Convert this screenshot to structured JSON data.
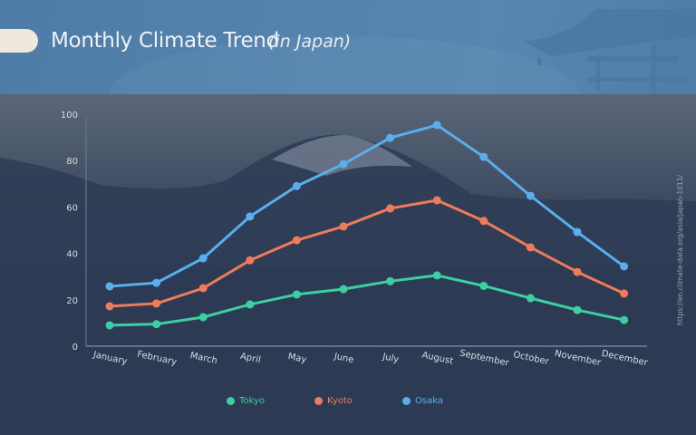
{
  "header": {
    "title": "Monthly Climate Trend",
    "subtitle": "(in Japan)"
  },
  "source": "https://en.climate-data.org/asia/japan-1011/",
  "legend": [
    {
      "label": "Tokyo",
      "color": "#3ccfa0"
    },
    {
      "label": "Kyoto",
      "color": "#ef7b5a"
    },
    {
      "label": "Osaka",
      "color": "#5aaeee"
    }
  ],
  "chart_data": {
    "type": "line",
    "title": "Monthly Climate Trend (in Japan)",
    "xlabel": "",
    "ylabel": "",
    "ylim": [
      0,
      100
    ],
    "yticks": [
      0,
      20,
      40,
      60,
      80,
      100
    ],
    "grid": false,
    "legend_position": "bottom",
    "categories": [
      "January",
      "February",
      "March",
      "April",
      "May",
      "June",
      "July",
      "August",
      "September",
      "October",
      "November",
      "December"
    ],
    "series": [
      {
        "name": "Tokyo",
        "color": "#3ccfa0",
        "values": [
          9,
          9.5,
          12.5,
          18,
          22.3,
          24.6,
          28,
          30.5,
          26,
          20.7,
          15.6,
          11.3
        ]
      },
      {
        "name": "Kyoto",
        "color": "#ef7b5a",
        "values": [
          17.2,
          18.4,
          25,
          37,
          45.7,
          51.6,
          59.4,
          62.9,
          54,
          42.6,
          32,
          22.7
        ]
      },
      {
        "name": "Osaka",
        "color": "#5aaeee",
        "values": [
          25.8,
          27.3,
          37.9,
          55.9,
          69,
          78.5,
          89.8,
          95.3,
          81.6,
          64.8,
          49.2,
          34.4
        ]
      }
    ]
  }
}
